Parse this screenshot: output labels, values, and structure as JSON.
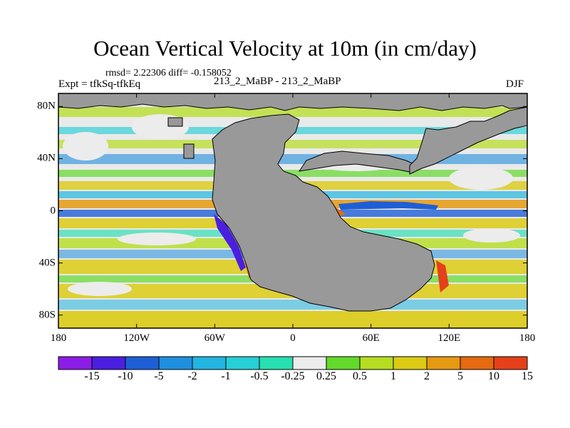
{
  "title": "Ocean Vertical Velocity at 10m (in cm/day)",
  "stats": "rmsd= 2.22306 diff= -0.158052",
  "experiment": "Expt = tfkSq-tfkEq",
  "comparison": "213_2_MaBP - 213_2_MaBP",
  "season": "DJF",
  "map": {
    "lat_labels": [
      "80N",
      "40N",
      "0",
      "40S",
      "80S"
    ],
    "lat_values": [
      80,
      40,
      0,
      -40,
      -80
    ],
    "lon_labels": [
      "180",
      "120W",
      "60W",
      "0",
      "60E",
      "120E",
      "180"
    ],
    "lon_values": [
      -180,
      -120,
      -60,
      0,
      60,
      120,
      180
    ],
    "lon_range": [
      -180,
      180
    ],
    "lat_range": [
      -90,
      90
    ],
    "land_color": "#999999"
  },
  "colorbar": {
    "labels": [
      "-15",
      "-10",
      "-5",
      "-2",
      "-1",
      "-0.5",
      "-0.25",
      "0.25",
      "0.5",
      "1",
      "2",
      "5",
      "10",
      "15"
    ],
    "colors": [
      "#8b1ee6",
      "#4b1fe0",
      "#1f5fd6",
      "#1f8fdf",
      "#22b5e0",
      "#27cfd6",
      "#27dfb0",
      "#ececec",
      "#63d92b",
      "#b5dd22",
      "#dccb15",
      "#e59a12",
      "#e56a10",
      "#e5401a"
    ]
  }
}
